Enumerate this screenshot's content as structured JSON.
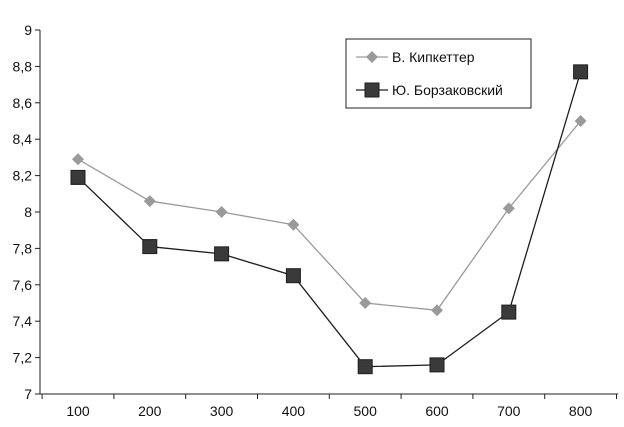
{
  "chart_data": {
    "type": "line",
    "title": "",
    "xlabel": "",
    "ylabel": "",
    "x": [
      100,
      200,
      300,
      400,
      500,
      600,
      700,
      800
    ],
    "x_tick_labels": [
      "100",
      "200",
      "300",
      "400",
      "500",
      "600",
      "700",
      "800"
    ],
    "ylim": [
      7,
      9
    ],
    "y_ticks": [
      7,
      7.2,
      7.4,
      7.6,
      7.8,
      8,
      8.2,
      8.4,
      8.6,
      8.8,
      9
    ],
    "y_tick_labels": [
      "7",
      "7,2",
      "7,4",
      "7,6",
      "7,8",
      "8",
      "8,2",
      "8,4",
      "8,6",
      "8,8",
      "9"
    ],
    "grid": false,
    "legend_position": "top-right",
    "series": [
      {
        "name": "В. Кипкеттер",
        "marker": "diamond",
        "color": "#9a9a9a",
        "values": [
          8.29,
          8.06,
          8.0,
          7.93,
          7.5,
          7.46,
          8.02,
          8.5
        ]
      },
      {
        "name": "Ю. Борзаковский",
        "marker": "square",
        "color": "#3a3a3a",
        "values": [
          8.19,
          7.81,
          7.77,
          7.65,
          7.15,
          7.16,
          7.45,
          8.77
        ]
      }
    ]
  }
}
